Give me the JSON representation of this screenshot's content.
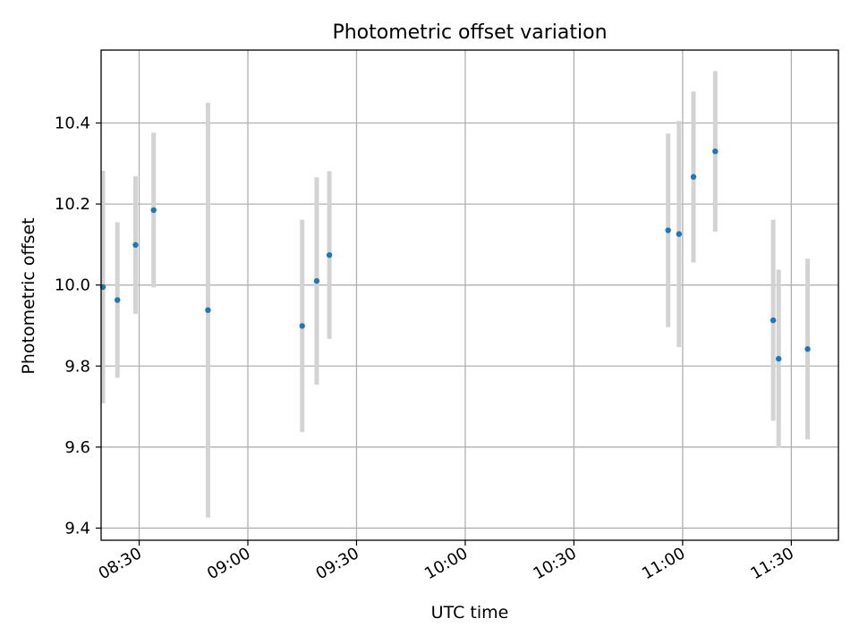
{
  "chart_data": {
    "type": "scatter",
    "title": "Photometric offset variation",
    "xlabel": "UTC time",
    "ylabel": "Photometric offset",
    "grid": true,
    "x_ticks": [
      "08:30",
      "09:00",
      "09:30",
      "10:00",
      "10:30",
      "11:00",
      "11:30"
    ],
    "y_ticks": [
      "9.4",
      "9.6",
      "9.8",
      "10.0",
      "10.2",
      "10.4"
    ],
    "xlim": [
      "08:19:30",
      "11:43:00"
    ],
    "ylim": [
      9.37,
      10.58
    ],
    "x": [
      "08:20:00",
      "08:24:00",
      "08:29:00",
      "08:34:00",
      "08:49:00",
      "09:15:00",
      "09:19:00",
      "09:22:30",
      "10:56:00",
      "10:59:00",
      "11:03:00",
      "11:09:00",
      "11:25:00",
      "11:26:30",
      "11:34:30"
    ],
    "y": [
      9.995,
      9.963,
      10.099,
      10.185,
      9.938,
      9.899,
      10.01,
      10.074,
      10.135,
      10.126,
      10.267,
      10.33,
      9.913,
      9.818,
      9.842
    ],
    "yerr": [
      0.287,
      0.192,
      0.17,
      0.191,
      0.512,
      0.262,
      0.256,
      0.207,
      0.239,
      0.279,
      0.211,
      0.198,
      0.248,
      0.22,
      0.223
    ],
    "colors": {
      "point": "#1f77b4",
      "errorbar": "#d3d3d3",
      "grid": "#b0b0b0",
      "axes": "#000000"
    }
  }
}
